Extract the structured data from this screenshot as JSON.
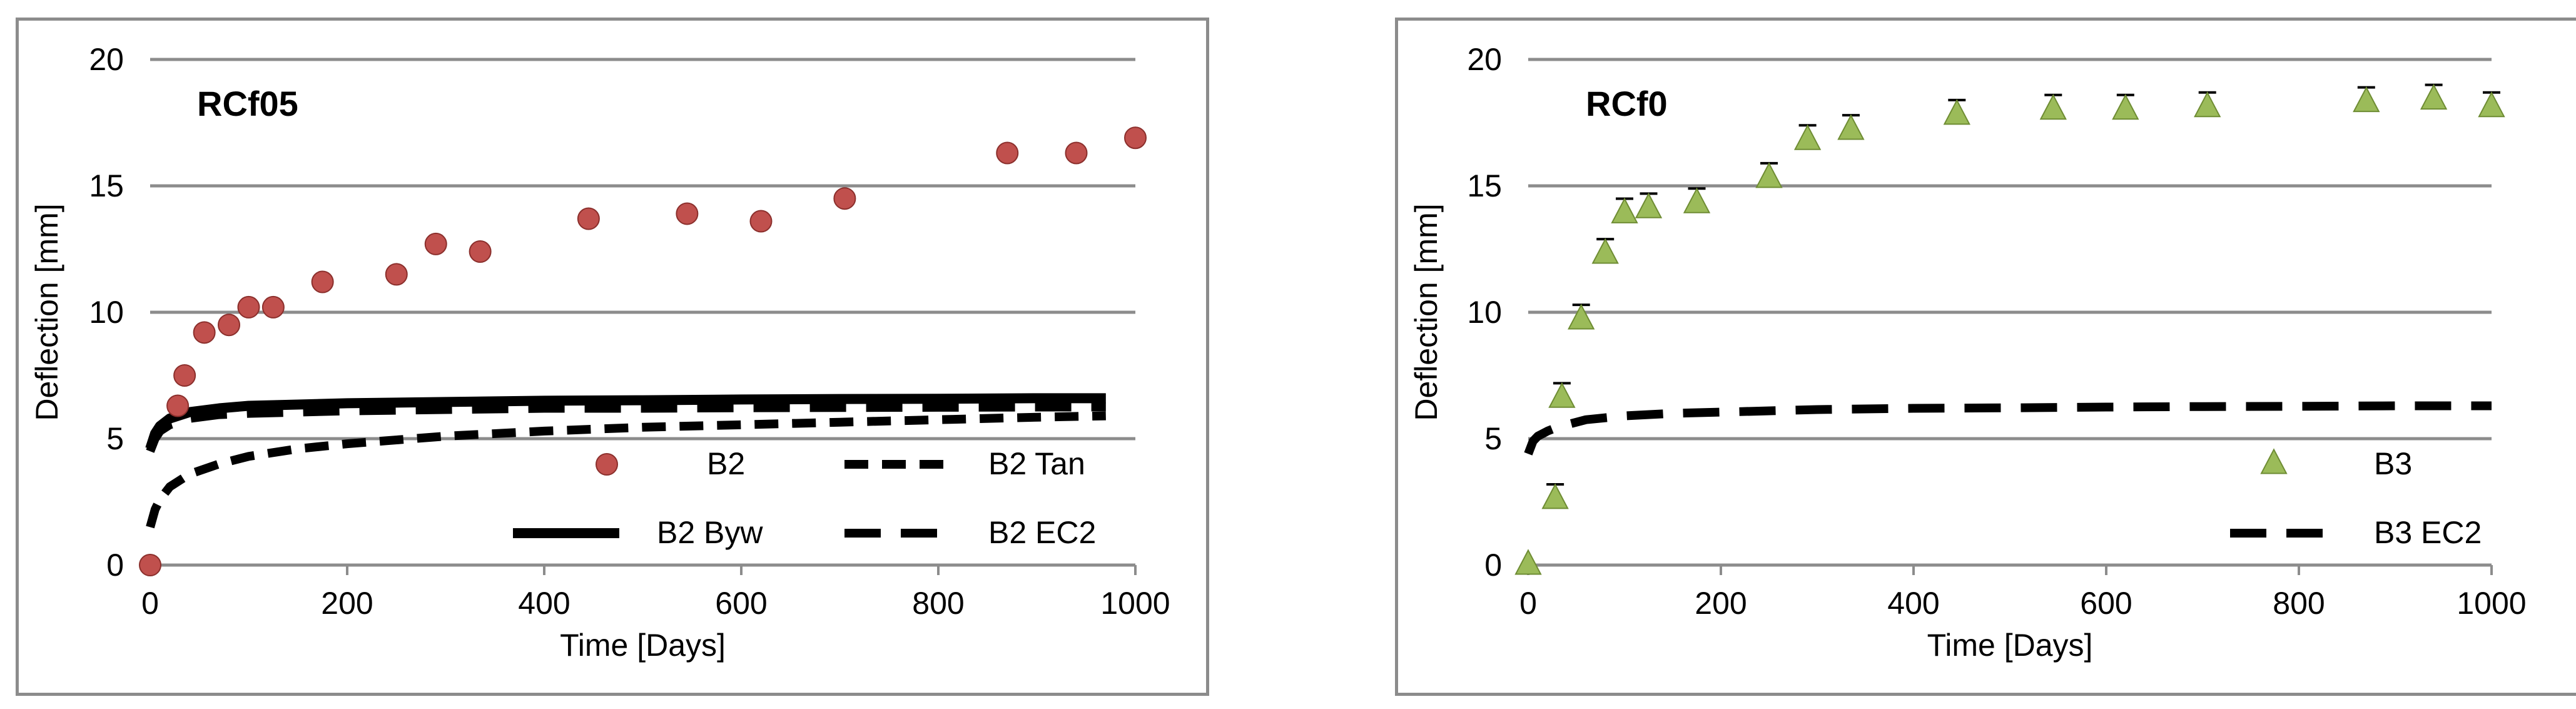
{
  "chart_data": [
    {
      "type": "scatter",
      "title": "RCf05",
      "xlabel": "Time [Days]",
      "ylabel": "Deflection [mm]",
      "xlim": [
        0,
        1000
      ],
      "ylim": [
        0,
        20
      ],
      "xticks": [
        0,
        200,
        400,
        600,
        800,
        1000
      ],
      "yticks": [
        0,
        5,
        10,
        15,
        20
      ],
      "grid": "horizontal",
      "legend_position": "bottom-right, two columns",
      "colors": {
        "marker": "#c0504d",
        "marker_edge": "#8b2f2c",
        "line": "#000000",
        "grid": "#8c8c8c"
      },
      "series": [
        {
          "name": "B2",
          "kind": "marker",
          "marker": "circle",
          "x": [
            0,
            28,
            35,
            55,
            80,
            100,
            125,
            175,
            250,
            290,
            335,
            445,
            545,
            620,
            705,
            870,
            940,
            1000
          ],
          "y": [
            0,
            6.3,
            7.5,
            9.2,
            9.5,
            10.2,
            10.2,
            11.2,
            11.5,
            12.7,
            12.4,
            13.7,
            13.9,
            13.6,
            14.5,
            16.3,
            16.3,
            16.9
          ]
        },
        {
          "name": "B2 Tan",
          "kind": "line",
          "dash": "short",
          "x": [
            0,
            5,
            10,
            20,
            40,
            70,
            100,
            150,
            200,
            300,
            400,
            500,
            600,
            700,
            800,
            900,
            970
          ],
          "y": [
            1.5,
            2.2,
            2.6,
            3.1,
            3.6,
            4.0,
            4.3,
            4.6,
            4.8,
            5.1,
            5.3,
            5.45,
            5.55,
            5.65,
            5.75,
            5.85,
            5.9
          ]
        },
        {
          "name": "B2 Byw",
          "kind": "line",
          "dash": "solid",
          "x": [
            0,
            5,
            10,
            20,
            40,
            70,
            100,
            150,
            200,
            300,
            400,
            500,
            600,
            700,
            800,
            900,
            970
          ],
          "y": [
            4.6,
            5.2,
            5.5,
            5.8,
            6.05,
            6.2,
            6.3,
            6.35,
            6.4,
            6.45,
            6.5,
            6.52,
            6.55,
            6.57,
            6.58,
            6.6,
            6.6
          ]
        },
        {
          "name": "B2 EC2",
          "kind": "line",
          "dash": "long",
          "x": [
            0,
            5,
            10,
            20,
            40,
            70,
            100,
            150,
            200,
            300,
            400,
            500,
            600,
            700,
            800,
            900,
            970
          ],
          "y": [
            4.5,
            5.0,
            5.3,
            5.55,
            5.8,
            5.95,
            6.0,
            6.05,
            6.1,
            6.15,
            6.2,
            6.2,
            6.22,
            6.23,
            6.24,
            6.25,
            6.25
          ]
        }
      ]
    },
    {
      "type": "scatter",
      "title": "RCf0",
      "xlabel": "Time [Days]",
      "ylabel": "Deflection [mm]",
      "xlim": [
        0,
        1000
      ],
      "ylim": [
        0,
        20
      ],
      "xticks": [
        0,
        200,
        400,
        600,
        800,
        1000
      ],
      "yticks": [
        0,
        5,
        10,
        15,
        20
      ],
      "grid": "horizontal",
      "legend_position": "bottom-right, one column",
      "colors": {
        "marker": "#9bbb59",
        "marker_edge": "#6e8c33",
        "line": "#000000",
        "grid": "#8c8c8c"
      },
      "series": [
        {
          "name": "B3",
          "kind": "marker",
          "marker": "triangle",
          "x": [
            0,
            28,
            35,
            55,
            80,
            100,
            125,
            175,
            250,
            290,
            335,
            445,
            545,
            620,
            705,
            870,
            940,
            1000
          ],
          "y": [
            0,
            2.6,
            6.6,
            9.7,
            12.3,
            13.9,
            14.1,
            14.3,
            15.3,
            16.8,
            17.2,
            17.8,
            18.0,
            18.0,
            18.1,
            18.3,
            18.4,
            18.1
          ]
        },
        {
          "name": "B3 EC2",
          "kind": "line",
          "dash": "long",
          "x": [
            0,
            5,
            10,
            20,
            30,
            60,
            100,
            150,
            200,
            300,
            400,
            500,
            600,
            700,
            800,
            900,
            1000
          ],
          "y": [
            4.4,
            4.9,
            5.1,
            5.3,
            5.45,
            5.75,
            5.9,
            6.0,
            6.05,
            6.15,
            6.2,
            6.22,
            6.25,
            6.27,
            6.28,
            6.3,
            6.3
          ]
        }
      ]
    }
  ]
}
